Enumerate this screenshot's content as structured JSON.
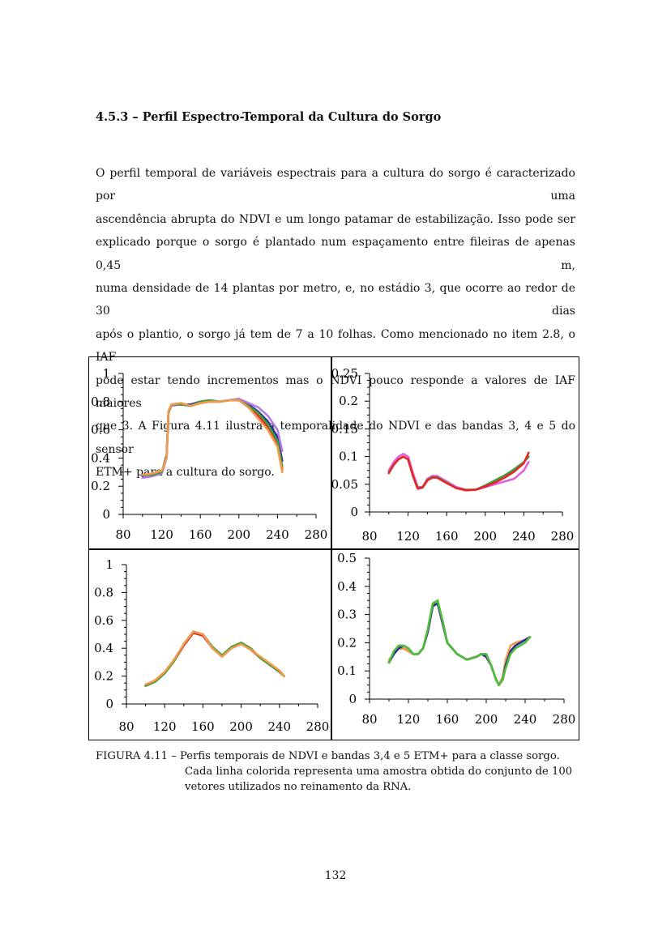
{
  "section_title": "4.5.3 – Perfil Espectro-Temporal da Cultura do Sorgo",
  "paragraph_lines": [
    "O perfil temporal de variáveis espectrais para a cultura do sorgo é caracterizado por uma",
    "ascendência abrupta do NDVI e um longo patamar de estabilização. Isso pode ser",
    "explicado porque o sorgo é plantado num espaçamento entre fileiras de apenas 0,45 m,",
    "numa densidade de 14 plantas por metro, e, no estádio 3, que ocorre ao redor de 30 dias",
    "após o plantio, o sorgo já tem de 7 a 10 folhas. Como mencionado no item 2.8, o IAF",
    "pode estar tendo incrementos mas o NDVI pouco responde a valores de IAF maiores",
    "que 3. A Figura 4.11 ilustra a temporalidade do NDVI e das bandas 3, 4 e 5 do sensor",
    "ETM+ para a cultura do sorgo."
  ],
  "caption": {
    "line1": "FIGURA 4.11 – Perfis temporais de NDVI e bandas 3,4 e 5 ETM+ para a classe sorgo.",
    "line2": "Cada linha colorida representa uma amostra obtida do conjunto de 100",
    "line3": "vetores utilizados no reinamento da RNA."
  },
  "page_number": "132",
  "chart_data": [
    {
      "type": "line",
      "xlim": [
        80,
        280
      ],
      "ylim": [
        0,
        1
      ],
      "xticks": [
        "80",
        "120",
        "160",
        "200",
        "240",
        "280"
      ],
      "yticks": [
        "0",
        "0.2",
        "0.4",
        "0.6",
        "0.8",
        "1"
      ],
      "series": [
        {
          "color": "#e8262a",
          "x": [
            100,
            110,
            120,
            125,
            127,
            130,
            140,
            150,
            160,
            170,
            180,
            190,
            200,
            210,
            220,
            230,
            240,
            245
          ],
          "y": [
            0.28,
            0.28,
            0.3,
            0.4,
            0.72,
            0.78,
            0.78,
            0.77,
            0.79,
            0.8,
            0.8,
            0.81,
            0.81,
            0.76,
            0.7,
            0.62,
            0.5,
            0.32
          ]
        },
        {
          "color": "#2a2fa0",
          "x": [
            100,
            110,
            120,
            125,
            127,
            130,
            140,
            150,
            160,
            170,
            180,
            190,
            200,
            210,
            220,
            230,
            240,
            245
          ],
          "y": [
            0.27,
            0.28,
            0.3,
            0.42,
            0.73,
            0.78,
            0.78,
            0.78,
            0.8,
            0.81,
            0.8,
            0.81,
            0.82,
            0.78,
            0.73,
            0.66,
            0.55,
            0.38
          ]
        },
        {
          "color": "#b57be8",
          "x": [
            100,
            110,
            120,
            125,
            127,
            130,
            140,
            150,
            160,
            170,
            180,
            190,
            200,
            210,
            220,
            230,
            240,
            245
          ],
          "y": [
            0.26,
            0.27,
            0.29,
            0.4,
            0.72,
            0.77,
            0.78,
            0.77,
            0.79,
            0.8,
            0.8,
            0.81,
            0.82,
            0.79,
            0.76,
            0.7,
            0.6,
            0.45
          ]
        },
        {
          "color": "#3c9e3c",
          "x": [
            100,
            110,
            120,
            125,
            127,
            130,
            140,
            150,
            160,
            170,
            180,
            190,
            200,
            210,
            220,
            230,
            240,
            245
          ],
          "y": [
            0.28,
            0.28,
            0.3,
            0.41,
            0.72,
            0.78,
            0.78,
            0.77,
            0.8,
            0.81,
            0.8,
            0.81,
            0.81,
            0.77,
            0.72,
            0.64,
            0.52,
            0.34
          ]
        },
        {
          "color": "#f39a4a",
          "x": [
            100,
            110,
            120,
            125,
            127,
            130,
            140,
            150,
            160,
            170,
            180,
            190,
            200,
            210,
            220,
            230,
            240,
            245
          ],
          "y": [
            0.28,
            0.29,
            0.31,
            0.4,
            0.73,
            0.78,
            0.79,
            0.77,
            0.79,
            0.8,
            0.8,
            0.81,
            0.81,
            0.76,
            0.68,
            0.6,
            0.48,
            0.3
          ]
        }
      ]
    },
    {
      "type": "line",
      "xlim": [
        80,
        280
      ],
      "ylim": [
        0,
        0.25
      ],
      "xticks": [
        "80",
        "120",
        "160",
        "200",
        "240",
        "280"
      ],
      "yticks": [
        "0",
        "0.05",
        "0.1",
        "0.15",
        "0.2",
        "0.25"
      ],
      "series": [
        {
          "color": "#e060e0",
          "x": [
            100,
            105,
            110,
            115,
            120,
            125,
            130,
            135,
            140,
            145,
            150,
            160,
            170,
            180,
            190,
            200,
            210,
            220,
            230,
            240,
            245
          ],
          "y": [
            0.075,
            0.09,
            0.1,
            0.105,
            0.1,
            0.07,
            0.045,
            0.045,
            0.06,
            0.065,
            0.065,
            0.055,
            0.045,
            0.04,
            0.04,
            0.045,
            0.05,
            0.055,
            0.06,
            0.075,
            0.09
          ]
        },
        {
          "color": "#3c9e3c",
          "x": [
            100,
            105,
            110,
            115,
            120,
            125,
            130,
            135,
            140,
            145,
            150,
            160,
            170,
            180,
            190,
            200,
            210,
            220,
            230,
            240,
            245
          ],
          "y": [
            0.072,
            0.085,
            0.095,
            0.1,
            0.095,
            0.065,
            0.043,
            0.045,
            0.058,
            0.063,
            0.063,
            0.053,
            0.043,
            0.04,
            0.04,
            0.048,
            0.057,
            0.066,
            0.077,
            0.09,
            0.1
          ]
        },
        {
          "color": "#e8262a",
          "x": [
            100,
            105,
            110,
            115,
            120,
            125,
            130,
            135,
            140,
            145,
            150,
            160,
            170,
            180,
            190,
            200,
            210,
            220,
            230,
            240,
            245
          ],
          "y": [
            0.07,
            0.085,
            0.095,
            0.1,
            0.095,
            0.065,
            0.042,
            0.044,
            0.057,
            0.062,
            0.062,
            0.052,
            0.043,
            0.039,
            0.04,
            0.046,
            0.053,
            0.062,
            0.073,
            0.088,
            0.107
          ]
        }
      ]
    },
    {
      "type": "line",
      "xlim": [
        80,
        280
      ],
      "ylim": [
        0,
        1
      ],
      "xticks": [
        "80",
        "120",
        "160",
        "200",
        "240",
        "280"
      ],
      "yticks": [
        "0",
        "0.2",
        "0.4",
        "0.6",
        "0.8",
        "1"
      ],
      "series": [
        {
          "color": "#e8262a",
          "x": [
            100,
            110,
            120,
            130,
            140,
            150,
            160,
            170,
            180,
            190,
            200,
            210,
            220,
            230,
            240,
            245
          ],
          "y": [
            0.13,
            0.16,
            0.22,
            0.31,
            0.42,
            0.51,
            0.49,
            0.4,
            0.34,
            0.41,
            0.43,
            0.39,
            0.33,
            0.28,
            0.23,
            0.2
          ]
        },
        {
          "color": "#3c9e3c",
          "x": [
            100,
            110,
            120,
            130,
            140,
            150,
            160,
            170,
            180,
            190,
            200,
            210,
            220,
            230,
            240,
            245
          ],
          "y": [
            0.13,
            0.16,
            0.22,
            0.31,
            0.43,
            0.52,
            0.5,
            0.41,
            0.35,
            0.41,
            0.44,
            0.4,
            0.33,
            0.28,
            0.23,
            0.2
          ]
        },
        {
          "color": "#f39a4a",
          "x": [
            100,
            110,
            120,
            130,
            140,
            150,
            160,
            170,
            180,
            190,
            200,
            210,
            220,
            230,
            240,
            245
          ],
          "y": [
            0.14,
            0.17,
            0.23,
            0.32,
            0.43,
            0.52,
            0.5,
            0.4,
            0.34,
            0.4,
            0.43,
            0.39,
            0.34,
            0.29,
            0.24,
            0.2
          ]
        }
      ]
    },
    {
      "type": "line",
      "xlim": [
        80,
        280
      ],
      "ylim": [
        0,
        0.5
      ],
      "xticks": [
        "80",
        "120",
        "160",
        "200",
        "240",
        "280"
      ],
      "yticks": [
        "0",
        "0.1",
        "0.2",
        "0.3",
        "0.4",
        "0.5"
      ],
      "series": [
        {
          "color": "#e8262a",
          "x": [
            100,
            105,
            110,
            115,
            120,
            125,
            130,
            135,
            140,
            145,
            150,
            155,
            160,
            170,
            180,
            190,
            195,
            200,
            205,
            210,
            213,
            217,
            220,
            225,
            230,
            240,
            245
          ],
          "y": [
            0.13,
            0.16,
            0.18,
            0.18,
            0.17,
            0.16,
            0.16,
            0.18,
            0.24,
            0.33,
            0.34,
            0.27,
            0.2,
            0.16,
            0.14,
            0.15,
            0.16,
            0.15,
            0.12,
            0.07,
            0.05,
            0.07,
            0.12,
            0.17,
            0.19,
            0.21,
            0.22
          ]
        },
        {
          "color": "#f39a4a",
          "x": [
            100,
            105,
            110,
            115,
            120,
            125,
            130,
            135,
            140,
            145,
            150,
            155,
            160,
            170,
            180,
            190,
            195,
            200,
            205,
            210,
            213,
            217,
            220,
            225,
            230,
            240,
            245
          ],
          "y": [
            0.14,
            0.16,
            0.18,
            0.18,
            0.17,
            0.16,
            0.16,
            0.18,
            0.24,
            0.33,
            0.35,
            0.28,
            0.2,
            0.16,
            0.14,
            0.15,
            0.16,
            0.15,
            0.12,
            0.07,
            0.05,
            0.08,
            0.14,
            0.19,
            0.2,
            0.21,
            0.22
          ]
        },
        {
          "color": "#2a2fa0",
          "x": [
            100,
            105,
            110,
            115,
            120,
            125,
            130,
            135,
            140,
            145,
            150,
            155,
            160,
            170,
            180,
            190,
            195,
            200,
            205,
            210,
            213,
            217,
            220,
            225,
            230,
            240,
            245
          ],
          "y": [
            0.13,
            0.16,
            0.18,
            0.19,
            0.18,
            0.16,
            0.16,
            0.18,
            0.24,
            0.33,
            0.34,
            0.27,
            0.2,
            0.16,
            0.14,
            0.15,
            0.16,
            0.15,
            0.12,
            0.07,
            0.05,
            0.07,
            0.12,
            0.17,
            0.19,
            0.21,
            0.22
          ]
        },
        {
          "color": "#4cbf3a",
          "x": [
            100,
            105,
            110,
            115,
            120,
            125,
            130,
            135,
            140,
            145,
            150,
            155,
            160,
            170,
            180,
            190,
            195,
            200,
            205,
            210,
            213,
            217,
            220,
            225,
            230,
            240,
            245
          ],
          "y": [
            0.13,
            0.17,
            0.19,
            0.19,
            0.18,
            0.16,
            0.16,
            0.18,
            0.25,
            0.34,
            0.35,
            0.28,
            0.2,
            0.16,
            0.14,
            0.15,
            0.16,
            0.16,
            0.12,
            0.07,
            0.05,
            0.07,
            0.11,
            0.16,
            0.18,
            0.2,
            0.22
          ]
        }
      ]
    }
  ]
}
